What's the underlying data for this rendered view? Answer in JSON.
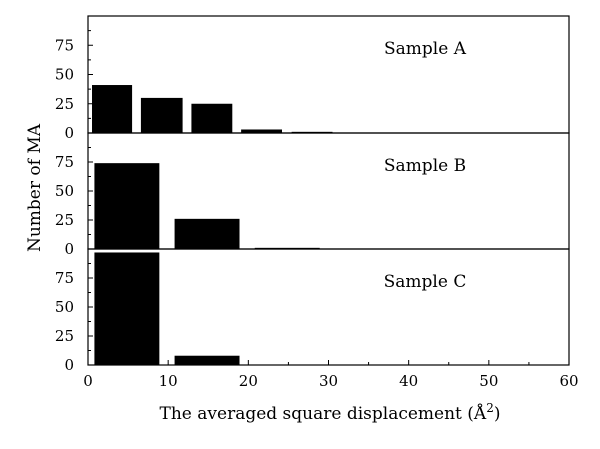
{
  "chart_data": {
    "type": "bar",
    "ylabel": "Number of MA",
    "xlabel": "The averaged square displacement (Å²)",
    "xlabel_base": "The averaged square displacement (Å",
    "xlabel_sup": "2",
    "xlabel_close": ")",
    "xlim": [
      0,
      60
    ],
    "xticks": [
      0,
      10,
      20,
      30,
      40,
      50,
      60
    ],
    "ylim": [
      0,
      100
    ],
    "yticks": [
      0,
      25,
      50,
      75
    ],
    "panels": [
      {
        "name": "Sample A",
        "bars": [
          {
            "x0": 0.5,
            "x1": 5.5,
            "value": 41
          },
          {
            "x0": 6.6,
            "x1": 11.8,
            "value": 30
          },
          {
            "x0": 12.9,
            "x1": 18.0,
            "value": 25
          },
          {
            "x0": 19.1,
            "x1": 24.2,
            "value": 3
          },
          {
            "x0": 25.4,
            "x1": 30.5,
            "value": 1
          }
        ]
      },
      {
        "name": "Sample B",
        "bars": [
          {
            "x0": 0.8,
            "x1": 8.9,
            "value": 74
          },
          {
            "x0": 10.8,
            "x1": 18.9,
            "value": 26
          },
          {
            "x0": 20.8,
            "x1": 28.9,
            "value": 1
          }
        ]
      },
      {
        "name": "Sample C",
        "bars": [
          {
            "x0": 0.8,
            "x1": 8.9,
            "value": 97
          },
          {
            "x0": 10.8,
            "x1": 18.9,
            "value": 8
          }
        ]
      }
    ]
  }
}
